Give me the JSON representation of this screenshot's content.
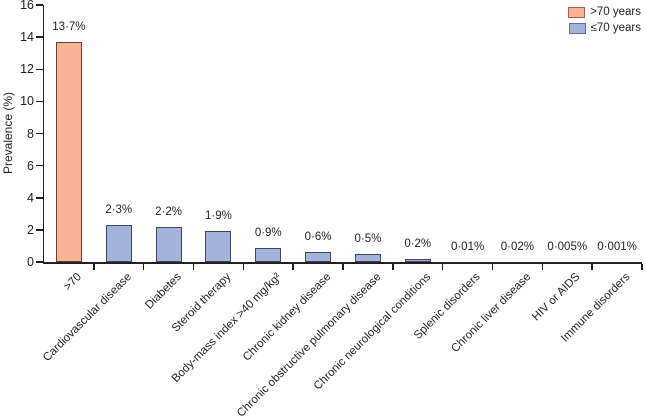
{
  "chart_data": {
    "type": "bar",
    "title": "",
    "ylabel": "Prevalence (%)",
    "ylim": [
      0,
      16
    ],
    "yticks": [
      0,
      2,
      4,
      6,
      8,
      10,
      12,
      14,
      16
    ],
    "grid": false,
    "legend_position": "top-right",
    "axis_color": "#231f20",
    "categories": [
      ">70",
      "Cardiovascular disease",
      "Diabetes",
      "Steroid therapy",
      "Body-mass index >40 mg/kg²",
      "Chronic kidney disease",
      "Chronic obstructive pulmonary disease",
      "Chronic neurological conditions",
      "Splenic disorders",
      "Chronic liver disease",
      "HIV or AIDS",
      "Immune disorders"
    ],
    "values": [
      13.7,
      2.3,
      2.2,
      1.9,
      0.9,
      0.6,
      0.5,
      0.2,
      0.01,
      0.02,
      0.005,
      0.001
    ],
    "value_labels": [
      "13·7%",
      "2·3%",
      "2·2%",
      "1·9%",
      "0·9%",
      "0·6%",
      "0·5%",
      "0·2%",
      "0·01%",
      "0·02%",
      "0·005%",
      "0·001%"
    ],
    "series_index": [
      0,
      1,
      1,
      1,
      1,
      1,
      1,
      1,
      1,
      1,
      1,
      1
    ],
    "series": [
      {
        "name": ">70 years",
        "fill": "#f9b294",
        "border": "#5f443a",
        "swatch_border": "#a4604a"
      },
      {
        "name": "≤70 years",
        "fill": "#a4b3dc",
        "border": "#3b4764",
        "swatch_border": "#5d6da0"
      }
    ]
  }
}
